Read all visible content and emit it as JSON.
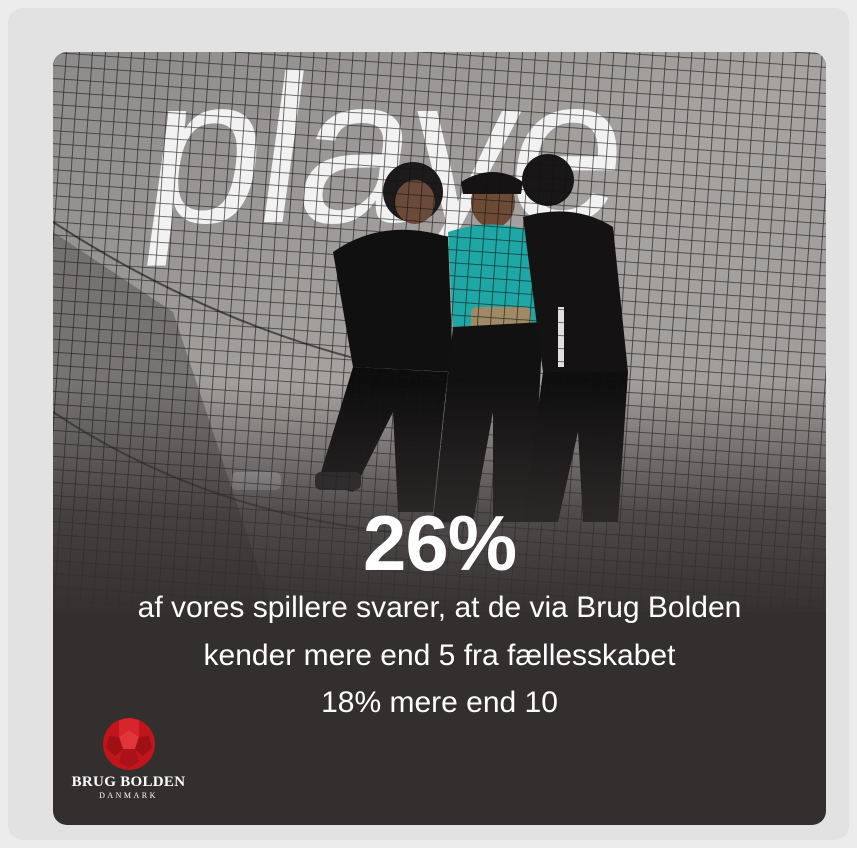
{
  "photo": {
    "wall_text": "playe",
    "description_icon": "people-against-net-photo"
  },
  "stat": {
    "headline": "26%",
    "line1": "af vores spillere svarer, at de via Brug Bolden",
    "line2": "kender mere end 5 fra fællesskabet",
    "line3": "18% mere end 10"
  },
  "logo": {
    "name": "BRUG BOLDEN",
    "subtitle": "DANMARK",
    "icon": "red-football-icon"
  },
  "colors": {
    "card_background": "#332f2f",
    "text": "#ffffff",
    "logo_red": "#c0151c"
  }
}
